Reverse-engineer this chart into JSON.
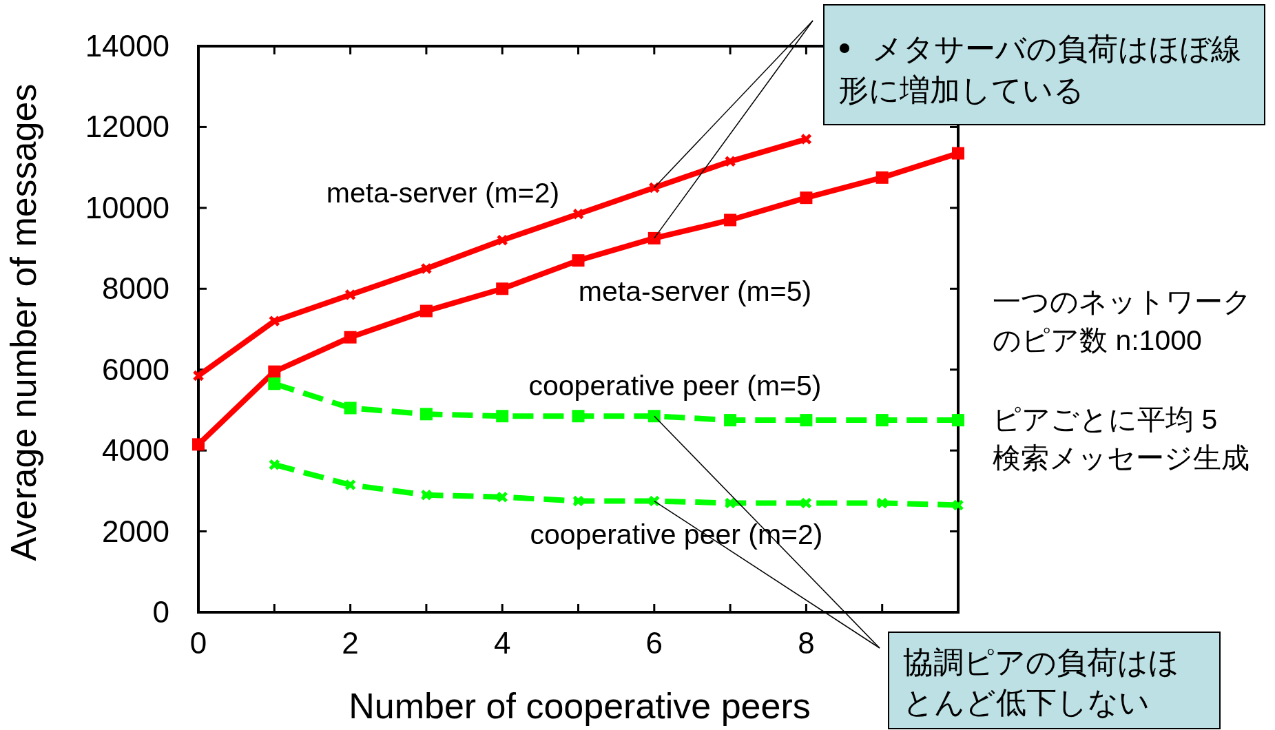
{
  "chart_data": {
    "type": "line",
    "xlabel": "Number of cooperative peers",
    "ylabel": "Average number of messages",
    "x": [
      0,
      1,
      2,
      3,
      4,
      5,
      6,
      7,
      8,
      9,
      10
    ],
    "xlim": [
      0,
      10
    ],
    "xticks": [
      0,
      2,
      4,
      6,
      8
    ],
    "ylim": [
      0,
      14000
    ],
    "yticks": [
      0,
      2000,
      4000,
      6000,
      8000,
      10000,
      12000,
      14000
    ],
    "legend": false,
    "grid": false,
    "series": [
      {
        "name": "meta-server (m=2)",
        "color": "#ff0000",
        "marker": "cross",
        "line_style": "solid",
        "values": [
          5850,
          7200,
          7850,
          8500,
          9200,
          9850,
          10500,
          11150,
          11700,
          null,
          null
        ]
      },
      {
        "name": "meta-server (m=5)",
        "color": "#ff0000",
        "marker": "square",
        "line_style": "solid",
        "values": [
          4150,
          5950,
          6800,
          7450,
          8000,
          8700,
          9250,
          9700,
          10250,
          10750,
          11350
        ]
      },
      {
        "name": "cooperative peer (m=5)",
        "color": "#00ff00",
        "marker": "square",
        "line_style": "dashed",
        "values": [
          null,
          5650,
          5050,
          4900,
          4850,
          4850,
          4850,
          4750,
          4750,
          4750,
          4750
        ]
      },
      {
        "name": "cooperative peer (m=2)",
        "color": "#00ff00",
        "marker": "cross",
        "line_style": "dashed",
        "values": [
          null,
          3650,
          3150,
          2900,
          2850,
          2750,
          2750,
          2700,
          2700,
          2700,
          2650
        ]
      }
    ],
    "annotations": [
      {
        "text": "メタサーバの負荷はほぼ線形に増加している",
        "x": 6,
        "y": 10500
      },
      {
        "text": "協調ピアの負荷はほとんど低下しない",
        "x": 6,
        "y": 2750
      },
      "一つのネットワークのピア数 n:1000",
      "ピアごとに平均 5検索メッセージ生成"
    ]
  }
}
